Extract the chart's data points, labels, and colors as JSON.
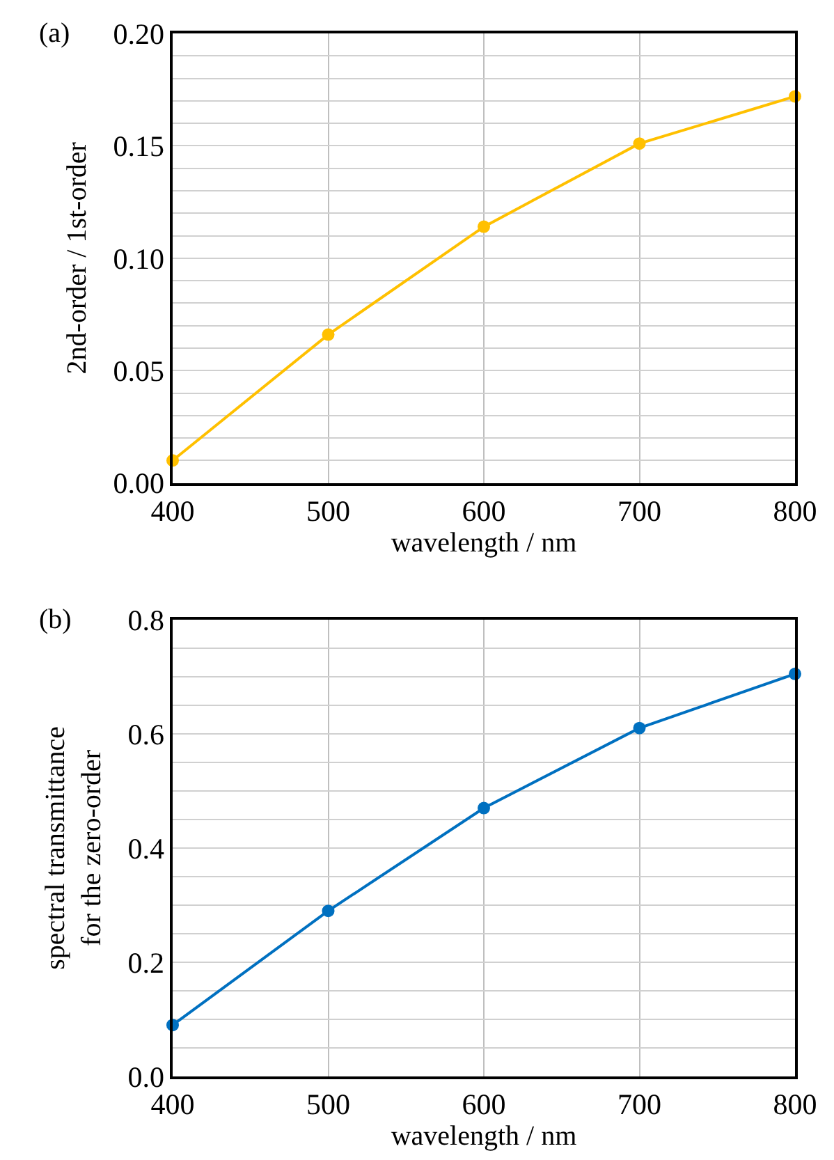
{
  "chart_data": [
    {
      "type": "line",
      "title": "(a)",
      "xlabel": "wavelength / nm",
      "ylabel": "2nd-order / 1st-order",
      "x": [
        400,
        500,
        600,
        700,
        800
      ],
      "series": [
        {
          "color": "#ffc000",
          "values": [
            0.01,
            0.066,
            0.114,
            0.151,
            0.172
          ]
        }
      ],
      "xlim": [
        400,
        800
      ],
      "xticks": [
        400,
        500,
        600,
        700,
        800
      ],
      "ylim": [
        0,
        0.2
      ],
      "yticks": [
        {
          "value": 0.0,
          "label": "0.00"
        },
        {
          "value": 0.01,
          "label": null
        },
        {
          "value": 0.02,
          "label": null
        },
        {
          "value": 0.03,
          "label": null
        },
        {
          "value": 0.04,
          "label": null
        },
        {
          "value": 0.05,
          "label": "0.05"
        },
        {
          "value": 0.06,
          "label": null
        },
        {
          "value": 0.07,
          "label": null
        },
        {
          "value": 0.08,
          "label": null
        },
        {
          "value": 0.09,
          "label": null
        },
        {
          "value": 0.1,
          "label": "0.10"
        },
        {
          "value": 0.11,
          "label": null
        },
        {
          "value": 0.12,
          "label": null
        },
        {
          "value": 0.13,
          "label": null
        },
        {
          "value": 0.14,
          "label": null
        },
        {
          "value": 0.15,
          "label": "0.15"
        },
        {
          "value": 0.16,
          "label": null
        },
        {
          "value": 0.17,
          "label": null
        },
        {
          "value": 0.18,
          "label": null
        },
        {
          "value": 0.19,
          "label": null
        },
        {
          "value": 0.2,
          "label": "0.20"
        }
      ],
      "grid": true,
      "marker": "circle",
      "line_style": "solid"
    },
    {
      "type": "line",
      "title": "(b)",
      "xlabel": "wavelength / nm",
      "ylabel": "spectral transmittance\nfor the zero-order",
      "x": [
        400,
        500,
        600,
        700,
        800
      ],
      "series": [
        {
          "color": "#0070c0",
          "values": [
            0.09,
            0.29,
            0.47,
            0.61,
            0.705
          ]
        }
      ],
      "xlim": [
        400,
        800
      ],
      "xticks": [
        400,
        500,
        600,
        700,
        800
      ],
      "ylim": [
        0,
        0.8
      ],
      "yticks": [
        {
          "value": 0.0,
          "label": "0.0"
        },
        {
          "value": 0.05,
          "label": null
        },
        {
          "value": 0.1,
          "label": null
        },
        {
          "value": 0.15,
          "label": null
        },
        {
          "value": 0.2,
          "label": "0.2"
        },
        {
          "value": 0.25,
          "label": null
        },
        {
          "value": 0.3,
          "label": null
        },
        {
          "value": 0.35,
          "label": null
        },
        {
          "value": 0.4,
          "label": "0.4"
        },
        {
          "value": 0.45,
          "label": null
        },
        {
          "value": 0.5,
          "label": null
        },
        {
          "value": 0.55,
          "label": null
        },
        {
          "value": 0.6,
          "label": "0.6"
        },
        {
          "value": 0.65,
          "label": null
        },
        {
          "value": 0.7,
          "label": null
        },
        {
          "value": 0.75,
          "label": null
        },
        {
          "value": 0.8,
          "label": "0.8"
        }
      ],
      "grid": true,
      "marker": "circle",
      "line_style": "solid"
    }
  ]
}
